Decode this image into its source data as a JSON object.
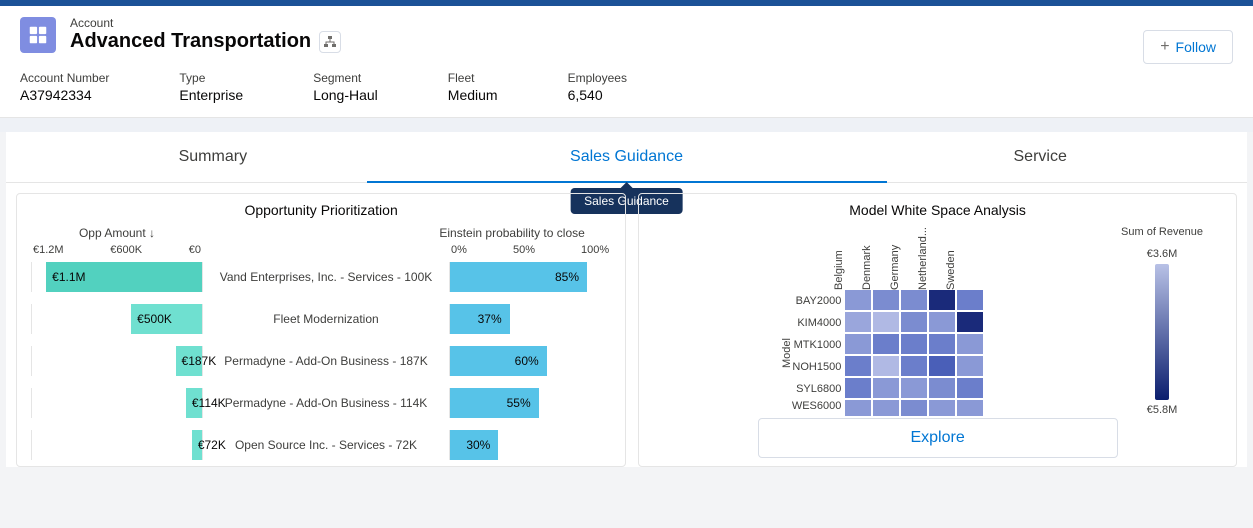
{
  "header": {
    "kicker": "Account",
    "title": "Advanced Transportation",
    "follow_label": "Follow"
  },
  "fields": [
    {
      "label": "Account Number",
      "value": "A37942334"
    },
    {
      "label": "Type",
      "value": "Enterprise"
    },
    {
      "label": "Segment",
      "value": "Long-Haul"
    },
    {
      "label": "Fleet",
      "value": "Medium"
    },
    {
      "label": "Employees",
      "value": "6,540"
    }
  ],
  "tabs": {
    "summary": "Summary",
    "sales": "Sales Guidance",
    "service": "Service",
    "active": "sales",
    "tooltip": "Sales Guidance"
  },
  "opp": {
    "title": "Opportunity Prioritization",
    "left_header": "Opp Amount ↓",
    "right_header": "Einstein probability to close",
    "left_axis": [
      "€1.2M",
      "€600K",
      "€0"
    ],
    "right_axis": [
      "0%",
      "50%",
      "100%"
    ],
    "left_max": 1200000,
    "left_color": "#6fe0d0",
    "left_color_alt": "#52d1bf",
    "right_color": "#57c3e8",
    "rows": [
      {
        "amount_label": "€1.1M",
        "amount": 1100000,
        "name": "Vand Enterprises, Inc. - Services - 100K",
        "pct_label": "85%",
        "pct": 85
      },
      {
        "amount_label": "€500K",
        "amount": 500000,
        "name": "Fleet Modernization",
        "pct_label": "37%",
        "pct": 37
      },
      {
        "amount_label": "€187K",
        "amount": 187000,
        "name": "Permadyne - Add-On Business - 187K",
        "pct_label": "60%",
        "pct": 60
      },
      {
        "amount_label": "€114K",
        "amount": 114000,
        "name": "Permadyne - Add-On Business - 114K",
        "pct_label": "55%",
        "pct": 55
      },
      {
        "amount_label": "€72K",
        "amount": 72000,
        "name": "Open Source Inc. - Services - 72K",
        "pct_label": "30%",
        "pct": 30
      }
    ]
  },
  "heat": {
    "title": "Model White Space Analysis",
    "y_axis": "Model",
    "columns": [
      "Belgium",
      "Denmark",
      "Germany",
      "Netherland...",
      "Sweden"
    ],
    "rows": [
      "BAY2000",
      "KIM4000",
      "MTK1000",
      "NOH1500",
      "SYL6800",
      "WES6000"
    ],
    "colors": [
      [
        "#8a99d6",
        "#7b8cd0",
        "#7b8cd0",
        "#1a2a7a",
        "#6b7ecb"
      ],
      [
        "#9aa6dc",
        "#b0b9e4",
        "#7b8cd0",
        "#8a99d6",
        "#1a2a7a"
      ],
      [
        "#8a99d6",
        "#6b7ecb",
        "#6b7ecb",
        "#6b7ecb",
        "#8a99d6"
      ],
      [
        "#6b7ecb",
        "#b0b9e4",
        "#6b7ecb",
        "#4a5fb8",
        "#8a99d6"
      ],
      [
        "#6b7ecb",
        "#8a99d6",
        "#8a99d6",
        "#7b8cd0",
        "#6b7ecb"
      ],
      [
        "#8a99d6",
        "#8a99d6",
        "#7b8cd0",
        "#8a99d6",
        "#8a99d6"
      ]
    ],
    "legend": {
      "title": "Sum of Revenue",
      "top": "€3.6M",
      "bottom": "€5.8M",
      "grad_top": "#b8c1e6",
      "grad_bottom": "#0b1e6e"
    },
    "explore": "Explore"
  }
}
